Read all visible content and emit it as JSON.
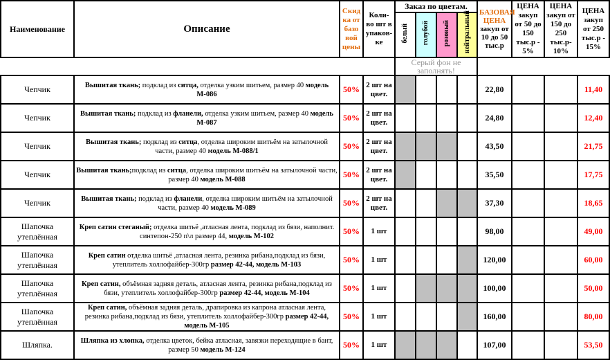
{
  "palette": {
    "header_accent": "#E26B0A",
    "discount_red": "#FF0000",
    "final_price_red": "#FF0000",
    "note_gray": "#969696",
    "cell_gray": "#C0C0C0",
    "border": "#000000"
  },
  "table_header": {
    "name": "Наименование",
    "description": "Описание",
    "discount": "Скид\nка от\nбазо\nвой\nцены",
    "qty": "Коли-\nво шт в\nупаков-\nке",
    "order_by_colors": "Заказ по цветам.",
    "colors": [
      {
        "label": "белый",
        "bg": "#FFFFFF"
      },
      {
        "label": "голубой",
        "bg": "#CCFFFF"
      },
      {
        "label": "розовый",
        "bg": "#FF99CC"
      },
      {
        "label": "нейтральный",
        "bg": "#FFFF99"
      }
    ],
    "base_price_title": "БАЗОВАЯ ЦЕНА",
    "base_price_sub": "закуп от 10 до 50 тыс.р",
    "price_tier2": "ЦЕНА закуп от 50 до 150 тыс.р - 5%",
    "price_tier3": "ЦЕНА закуп от 150 до 250 тыс.р- 10%",
    "price_tier4": "ЦЕНА закуп от 250 тыс.р - 15%",
    "note": "Серый фон не заполнять!"
  },
  "rows": [
    {
      "name": "Чепчик",
      "desc": [
        {
          "t": "Вышитая ткань;",
          "b": true
        },
        {
          "t": " подклад из ",
          "b": false
        },
        {
          "t": "ситца,",
          "b": true
        },
        {
          "t": " отделка узким  шитьем,  размер 40   ",
          "b": false
        },
        {
          "t": "модель М-086",
          "b": true
        }
      ],
      "discount": "50%",
      "qty": "2 шт на цвет.",
      "gray": [
        true,
        false,
        false,
        false
      ],
      "base": "22,80",
      "p2": "",
      "p3": "",
      "final": "11,40"
    },
    {
      "name": "Чепчик",
      "desc": [
        {
          "t": "Вышитая ткань;",
          "b": true
        },
        {
          "t": "  подклад из ",
          "b": false
        },
        {
          "t": "фланели,",
          "b": true
        },
        {
          "t": "  отделка узким  шитьем,  размер 40   ",
          "b": false
        },
        {
          "t": "модель М-087",
          "b": true
        }
      ],
      "discount": "50%",
      "qty": "2 шт на цвет.",
      "gray": [
        false,
        false,
        false,
        false
      ],
      "base": "24,80",
      "p2": "",
      "p3": "",
      "final": "12,40"
    },
    {
      "name": "Чепчик",
      "desc": [
        {
          "t": "Вышитая ткань;",
          "b": true
        },
        {
          "t": " подклад из ",
          "b": false
        },
        {
          "t": "ситца",
          "b": true
        },
        {
          "t": ", отделка широким шитьём   на затылочной части,  размер 40     ",
          "b": false
        },
        {
          "t": "модель М-088/1",
          "b": true
        }
      ],
      "discount": "50%",
      "qty": "2 шт на цвет.",
      "gray": [
        true,
        true,
        true,
        false
      ],
      "base": "43,50",
      "p2": "",
      "p3": "",
      "final": "21,75"
    },
    {
      "name": "Чепчик",
      "desc": [
        {
          "t": "Вышитая ткань;",
          "b": true
        },
        {
          "t": "подклад из ",
          "b": false
        },
        {
          "t": "ситца",
          "b": true
        },
        {
          "t": ", отделка широким шитьём на затылочной части,  размер 40   ",
          "b": false
        },
        {
          "t": "модель М-088",
          "b": true
        }
      ],
      "discount": "50%",
      "qty": "2 шт на цвет.",
      "gray": [
        true,
        false,
        false,
        false
      ],
      "base": "35,50",
      "p2": "",
      "p3": "",
      "final": "17,75"
    },
    {
      "name": "Чепчик",
      "desc": [
        {
          "t": "Вышитая ткань;",
          "b": true
        },
        {
          "t": " подклад из ",
          "b": false
        },
        {
          "t": "фланели",
          "b": true
        },
        {
          "t": ",  отделка широким шитьём  на затылочной части,  размер 40    ",
          "b": false
        },
        {
          "t": "модель М-089",
          "b": true
        }
      ],
      "discount": "50%",
      "qty": "2 шт на цвет.",
      "gray": [
        false,
        false,
        true,
        true
      ],
      "base": "37,30",
      "p2": "",
      "p3": "",
      "final": "18,65"
    },
    {
      "name": "Шапочка утеплённая",
      "desc": [
        {
          "t": "Креп сатин стеганый;",
          "b": true
        },
        {
          "t": "  отделка шитьё ,атласная лента, подклад из бязи, наполнит. синтепон-250 п\\л   размер 44,    ",
          "b": false
        },
        {
          "t": "модель М-102",
          "b": true
        }
      ],
      "discount": "50%",
      "qty": "1 шт",
      "gray": [
        false,
        false,
        false,
        false
      ],
      "base": "98,00",
      "p2": "",
      "p3": "",
      "final": "49,00"
    },
    {
      "name": "Шапочка утеплённая",
      "desc": [
        {
          "t": "Креп сатин",
          "b": true
        },
        {
          "t": "  отделка шитьё ,атласная лента, резинка рибана,подклад из бязи, утеплитель холлофайбер-300гр  ",
          "b": false
        },
        {
          "t": "размер 42-44,    модель М-103",
          "b": true
        }
      ],
      "discount": "50%",
      "qty": "1 шт",
      "gray": [
        false,
        false,
        false,
        true
      ],
      "base": "120,00",
      "p2": "",
      "p3": "",
      "final": "60,00"
    },
    {
      "name": "Шапочка утеплённая",
      "desc": [
        {
          "t": "Креп сатин,",
          "b": true
        },
        {
          "t": " объёмная задняя деталь, атласная лента, резинка рибана,подклад из бязи, утеплитель холлофайбер-300гр  ",
          "b": false
        },
        {
          "t": "размер 42-44,    модель М-104",
          "b": true
        }
      ],
      "discount": "50%",
      "qty": "1 шт",
      "gray": [
        false,
        true,
        true,
        true
      ],
      "base": "100,00",
      "p2": "",
      "p3": "",
      "final": "50,00"
    },
    {
      "name": "Шапочка утеплённая",
      "desc": [
        {
          "t": "Креп сатин,",
          "b": true
        },
        {
          "t": " объёмная задняя деталь, драпировка из капрона атласная лента, резинка рибана,подклад из бязи, утеплитель холлофайбер-300гр  ",
          "b": false
        },
        {
          "t": "размер 42-44, модель М-105",
          "b": true
        }
      ],
      "discount": "50%",
      "qty": "1 шт",
      "gray": [
        false,
        false,
        false,
        true
      ],
      "base": "160,00",
      "p2": "",
      "p3": "",
      "final": "80,00"
    },
    {
      "name": "Шляпка.",
      "desc": [
        {
          "t": "Шляпка из хлопка,",
          "b": true
        },
        {
          "t": " отделка  цветок, бейка атласная, завязки переходящие в бант,  размер 50 ",
          "b": false
        },
        {
          "t": "модель М-124",
          "b": true
        }
      ],
      "discount": "50%",
      "qty": "1 шт",
      "gray": [
        true,
        true,
        true,
        false
      ],
      "base": "107,00",
      "p2": "",
      "p3": "",
      "final": "53,50"
    }
  ]
}
